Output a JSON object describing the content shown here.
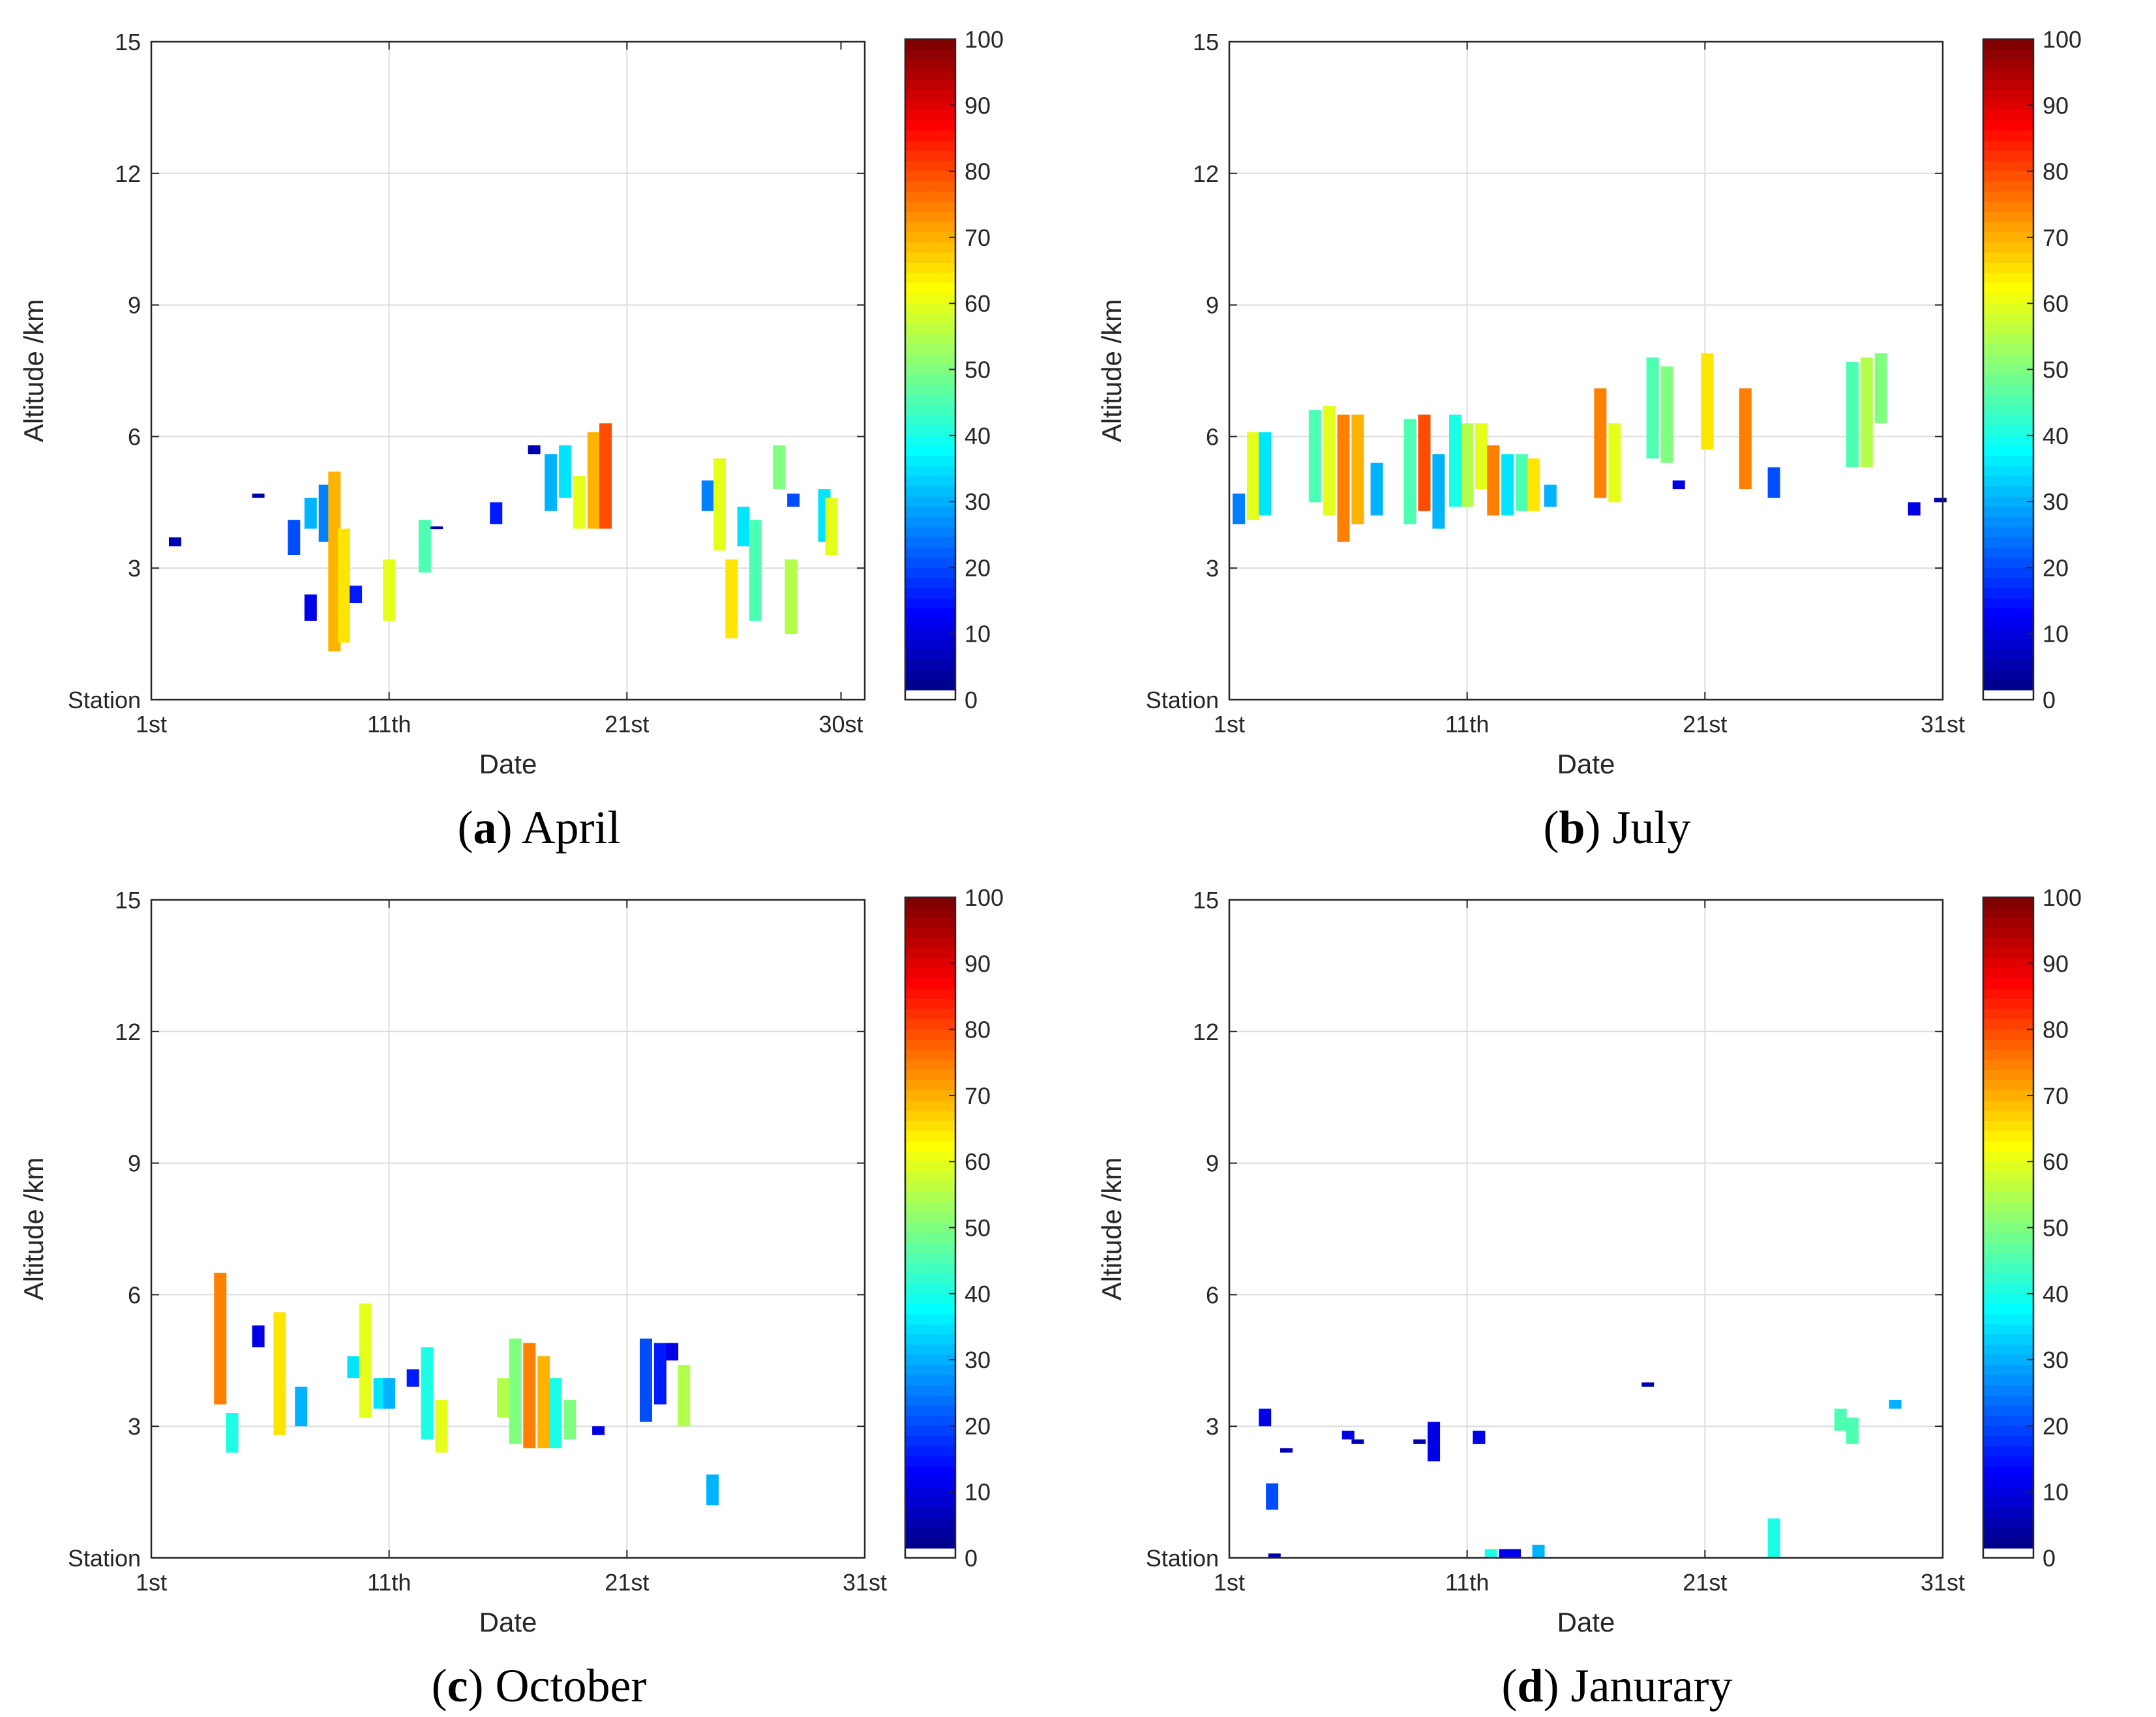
{
  "figure": {
    "panels": [
      {
        "letter": "a",
        "name": "April"
      },
      {
        "letter": "b",
        "name": "July"
      },
      {
        "letter": "c",
        "name": "October"
      },
      {
        "letter": "d",
        "name": "Janurary"
      }
    ]
  },
  "chart_data": [
    {
      "type": "heatmap",
      "title": "April",
      "xlabel": "Date",
      "ylabel": "Altitude /km",
      "xlim": [
        1,
        31
      ],
      "ylim": [
        0,
        15
      ],
      "xticks": [
        1,
        11,
        21,
        30
      ],
      "xtick_labels": [
        "1st",
        "11th",
        "21st",
        "30st"
      ],
      "yticks": [
        0,
        3,
        6,
        9,
        12,
        15
      ],
      "ytick_labels": [
        "Station",
        "3",
        "6",
        "9",
        "12",
        "15"
      ],
      "colorbar": {
        "min": 0,
        "max": 100,
        "ticks": [
          0,
          10,
          20,
          30,
          40,
          50,
          60,
          70,
          80,
          90,
          100
        ],
        "colormap": "jet"
      },
      "grid": true,
      "cells": [
        [
          2.0,
          3.5,
          3.7,
          5
        ],
        [
          5.5,
          4.6,
          4.7,
          5
        ],
        [
          7.0,
          3.3,
          4.1,
          20
        ],
        [
          7.7,
          1.8,
          2.4,
          10
        ],
        [
          7.7,
          3.9,
          4.6,
          30
        ],
        [
          8.3,
          3.6,
          4.9,
          25
        ],
        [
          8.7,
          1.1,
          5.2,
          70
        ],
        [
          9.1,
          1.3,
          3.9,
          65
        ],
        [
          9.6,
          2.2,
          2.6,
          15
        ],
        [
          11.0,
          1.8,
          3.2,
          60
        ],
        [
          12.5,
          2.9,
          4.1,
          45
        ],
        [
          13.0,
          3.9,
          3.95,
          5
        ],
        [
          15.5,
          4.0,
          4.5,
          15
        ],
        [
          17.1,
          5.6,
          5.8,
          5
        ],
        [
          17.8,
          4.3,
          5.6,
          30
        ],
        [
          18.4,
          4.6,
          5.8,
          35
        ],
        [
          19.0,
          3.9,
          5.1,
          60
        ],
        [
          19.6,
          3.9,
          6.1,
          70
        ],
        [
          20.1,
          3.9,
          6.3,
          80
        ],
        [
          24.4,
          4.3,
          5.0,
          25
        ],
        [
          24.9,
          3.4,
          5.5,
          60
        ],
        [
          25.4,
          1.4,
          3.2,
          65
        ],
        [
          25.9,
          3.5,
          4.4,
          35
        ],
        [
          26.4,
          1.8,
          4.1,
          45
        ],
        [
          27.4,
          4.8,
          5.8,
          50
        ],
        [
          27.9,
          1.5,
          3.2,
          55
        ],
        [
          28.0,
          4.4,
          4.7,
          20
        ],
        [
          29.3,
          3.6,
          4.8,
          35
        ],
        [
          29.6,
          3.3,
          4.6,
          60
        ]
      ]
    },
    {
      "type": "heatmap",
      "title": "July",
      "xlabel": "Date",
      "ylabel": "Altitude /km",
      "xlim": [
        1,
        31
      ],
      "ylim": [
        0,
        15
      ],
      "xticks": [
        1,
        11,
        21,
        31
      ],
      "xtick_labels": [
        "1st",
        "11th",
        "21st",
        "31st"
      ],
      "yticks": [
        0,
        3,
        6,
        9,
        12,
        15
      ],
      "ytick_labels": [
        "Station",
        "3",
        "6",
        "9",
        "12",
        "15"
      ],
      "colorbar": {
        "min": 0,
        "max": 100,
        "ticks": [
          0,
          10,
          20,
          30,
          40,
          50,
          60,
          70,
          80,
          90,
          100
        ],
        "colormap": "jet"
      },
      "grid": true,
      "cells": [
        [
          1.4,
          4.0,
          4.7,
          25
        ],
        [
          2.0,
          4.1,
          6.1,
          60
        ],
        [
          2.5,
          4.2,
          6.1,
          35
        ],
        [
          4.6,
          4.5,
          6.6,
          45
        ],
        [
          5.2,
          4.2,
          6.7,
          60
        ],
        [
          5.8,
          3.6,
          6.5,
          75
        ],
        [
          6.4,
          4.0,
          6.5,
          70
        ],
        [
          7.2,
          4.2,
          5.4,
          30
        ],
        [
          8.6,
          4.0,
          6.4,
          45
        ],
        [
          9.2,
          4.3,
          6.5,
          80
        ],
        [
          9.8,
          3.9,
          5.6,
          30
        ],
        [
          10.5,
          4.4,
          6.5,
          40
        ],
        [
          11.0,
          4.4,
          6.3,
          55
        ],
        [
          11.6,
          4.8,
          6.3,
          60
        ],
        [
          12.1,
          4.2,
          5.8,
          75
        ],
        [
          12.7,
          4.2,
          5.6,
          35
        ],
        [
          13.3,
          4.3,
          5.6,
          45
        ],
        [
          13.8,
          4.3,
          5.5,
          65
        ],
        [
          14.5,
          4.4,
          4.9,
          30
        ],
        [
          16.6,
          4.6,
          7.1,
          75
        ],
        [
          17.2,
          4.5,
          6.3,
          60
        ],
        [
          18.8,
          5.5,
          7.8,
          45
        ],
        [
          19.4,
          5.4,
          7.6,
          50
        ],
        [
          19.9,
          4.8,
          5.0,
          10
        ],
        [
          21.1,
          5.7,
          7.9,
          65
        ],
        [
          22.7,
          4.8,
          7.1,
          75
        ],
        [
          23.9,
          4.6,
          5.3,
          20
        ],
        [
          27.2,
          5.3,
          7.7,
          45
        ],
        [
          27.8,
          5.3,
          7.8,
          55
        ],
        [
          28.4,
          6.3,
          7.9,
          50
        ],
        [
          29.8,
          4.2,
          4.5,
          10
        ],
        [
          30.9,
          4.5,
          4.6,
          5
        ]
      ]
    },
    {
      "type": "heatmap",
      "title": "October",
      "xlabel": "Date",
      "ylabel": "Altitude /km",
      "xlim": [
        1,
        31
      ],
      "ylim": [
        0,
        15
      ],
      "xticks": [
        1,
        11,
        21,
        31
      ],
      "xtick_labels": [
        "1st",
        "11th",
        "21st",
        "31st"
      ],
      "yticks": [
        0,
        3,
        6,
        9,
        12,
        15
      ],
      "ytick_labels": [
        "Station",
        "3",
        "6",
        "9",
        "12",
        "15"
      ],
      "colorbar": {
        "min": 0,
        "max": 100,
        "ticks": [
          0,
          10,
          20,
          30,
          40,
          50,
          60,
          70,
          80,
          90,
          100
        ],
        "colormap": "jet"
      },
      "grid": true,
      "cells": [
        [
          3.9,
          3.5,
          6.5,
          75
        ],
        [
          4.4,
          2.4,
          3.3,
          40
        ],
        [
          5.5,
          4.8,
          5.3,
          10
        ],
        [
          6.4,
          2.8,
          5.6,
          65
        ],
        [
          7.3,
          3.0,
          3.9,
          30
        ],
        [
          9.5,
          4.1,
          4.6,
          35
        ],
        [
          10.0,
          3.2,
          5.8,
          60
        ],
        [
          10.6,
          3.4,
          4.1,
          35
        ],
        [
          11.0,
          3.4,
          4.1,
          30
        ],
        [
          12.0,
          3.9,
          4.3,
          15
        ],
        [
          12.6,
          2.7,
          4.8,
          40
        ],
        [
          13.2,
          2.4,
          3.6,
          60
        ],
        [
          15.8,
          3.2,
          4.1,
          55
        ],
        [
          16.3,
          2.6,
          5.0,
          50
        ],
        [
          16.9,
          2.5,
          4.9,
          75
        ],
        [
          17.5,
          2.5,
          4.6,
          70
        ],
        [
          18.0,
          2.5,
          4.1,
          40
        ],
        [
          18.6,
          2.7,
          3.6,
          50
        ],
        [
          19.8,
          2.8,
          3.0,
          10
        ],
        [
          21.8,
          3.1,
          5.0,
          20
        ],
        [
          22.4,
          3.5,
          4.9,
          15
        ],
        [
          22.9,
          4.5,
          4.9,
          10
        ],
        [
          23.4,
          3.0,
          4.4,
          55
        ],
        [
          24.6,
          1.2,
          1.9,
          30
        ]
      ]
    },
    {
      "type": "heatmap",
      "title": "Janurary",
      "xlabel": "Date",
      "ylabel": "Altitude /km",
      "xlim": [
        1,
        31
      ],
      "ylim": [
        0,
        15
      ],
      "xticks": [
        1,
        11,
        21,
        31
      ],
      "xtick_labels": [
        "1st",
        "11th",
        "21st",
        "31st"
      ],
      "yticks": [
        0,
        3,
        6,
        9,
        12,
        15
      ],
      "ytick_labels": [
        "Station",
        "3",
        "6",
        "9",
        "12",
        "15"
      ],
      "colorbar": {
        "min": 0,
        "max": 100,
        "ticks": [
          0,
          10,
          20,
          30,
          40,
          50,
          60,
          70,
          80,
          90,
          100
        ],
        "colormap": "jet"
      },
      "grid": true,
      "cells": [
        [
          2.5,
          3.0,
          3.4,
          10
        ],
        [
          2.8,
          1.1,
          1.7,
          20
        ],
        [
          2.9,
          0.0,
          0.1,
          5
        ],
        [
          3.4,
          2.4,
          2.5,
          5
        ],
        [
          6.0,
          2.7,
          2.9,
          10
        ],
        [
          6.4,
          2.6,
          2.7,
          5
        ],
        [
          9.0,
          2.6,
          2.7,
          5
        ],
        [
          9.6,
          2.2,
          3.1,
          10
        ],
        [
          11.5,
          2.6,
          2.9,
          10
        ],
        [
          12.0,
          0.0,
          0.2,
          40
        ],
        [
          12.6,
          0.0,
          0.2,
          10
        ],
        [
          13.0,
          0.0,
          0.2,
          10
        ],
        [
          14.0,
          0.0,
          0.3,
          30
        ],
        [
          18.6,
          3.9,
          4.0,
          5
        ],
        [
          23.9,
          0.0,
          0.9,
          40
        ],
        [
          26.7,
          2.9,
          3.4,
          45
        ],
        [
          27.2,
          2.6,
          3.2,
          45
        ],
        [
          29.0,
          3.4,
          3.6,
          30
        ]
      ]
    }
  ]
}
